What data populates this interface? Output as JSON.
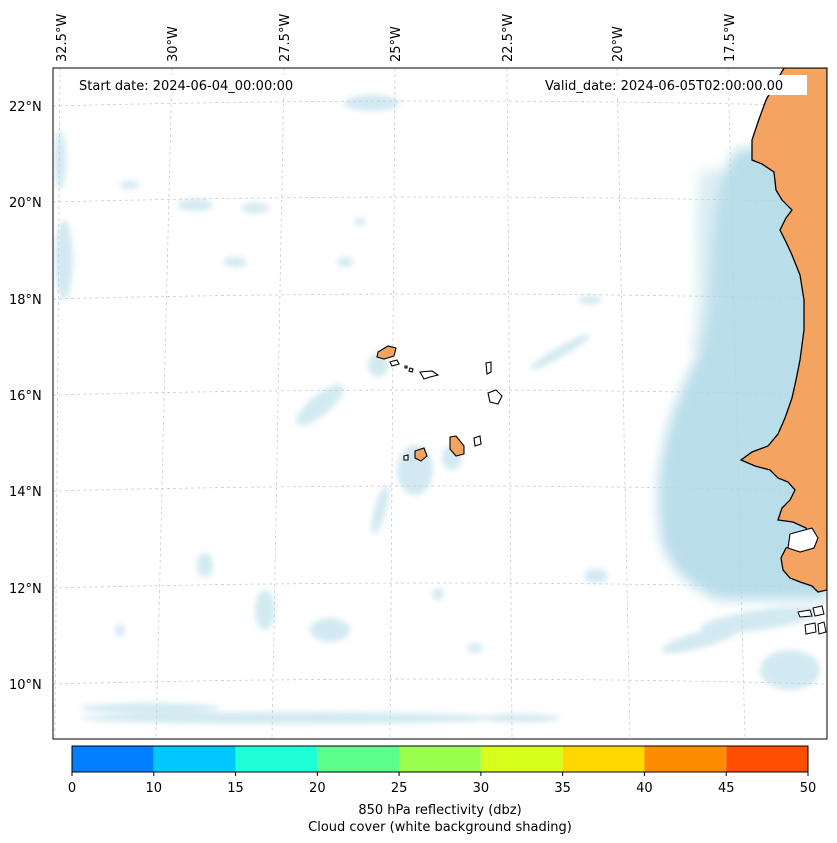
{
  "header": {
    "start_date": "Start date: 2024-06-04_00:00:00",
    "valid_date": "Valid_date: 2024-06-05T02:00:00.00"
  },
  "lon_labels": [
    "32.5°W",
    "30°W",
    "27.5°W",
    "25°W",
    "22.5°W",
    "20°W",
    "17.5°W"
  ],
  "lat_labels": [
    "22°N",
    "20°N",
    "18°N",
    "16°N",
    "14°N",
    "12°N",
    "10°N"
  ],
  "colorbar": {
    "ticks": [
      "0",
      "10",
      "15",
      "20",
      "25",
      "30",
      "35",
      "40",
      "45",
      "50"
    ],
    "colors": [
      "#0080ff",
      "#00c8ff",
      "#1effd8",
      "#5cff8c",
      "#9bff4e",
      "#d7ff1e",
      "#ffd700",
      "#ff8c00",
      "#ff4e00"
    ],
    "label_line1": "850 hPa reflectivity (dbz)",
    "label_line2": "Cloud cover (white background shading)"
  },
  "colors": {
    "land": "#f4a460",
    "cloud": "#add8e6",
    "grid": "#cccccc"
  }
}
